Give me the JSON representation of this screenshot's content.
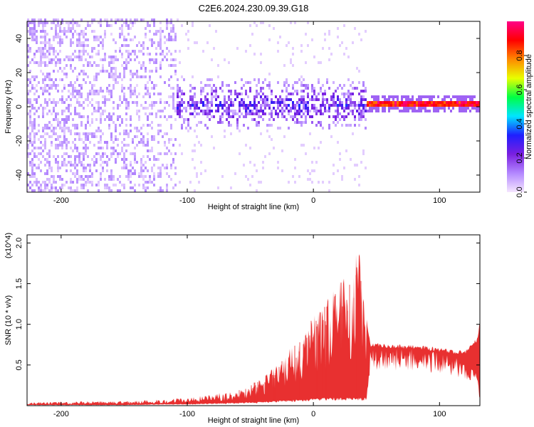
{
  "title": "C2E6.2024.230.09.39.G18",
  "colors": {
    "snr_line": "#e83030",
    "background": "#ffffff"
  },
  "chart_data": [
    {
      "type": "heatmap",
      "xlabel": "Height of straight line (km)",
      "ylabel": "Frequency (Hz)",
      "xlim": [
        -227,
        132
      ],
      "ylim": [
        -50,
        50
      ],
      "x_ticks": [
        -200,
        -100,
        0,
        100
      ],
      "y_ticks": [
        -40,
        -20,
        0,
        20,
        40
      ],
      "colorbar": {
        "label": "Normalized spectral amplitude",
        "range": [
          0,
          1
        ],
        "ticks": [
          0.0,
          0.2,
          0.4,
          0.6,
          0.8
        ],
        "colormap": [
          "#f5e6ff",
          "#b388ff",
          "#7a1fe0",
          "#1f1fff",
          "#00e5ff",
          "#00ff44",
          "#e8ff00",
          "#ff8800",
          "#ff0000",
          "#ff0088"
        ]
      },
      "regions": [
        {
          "x_range": [
            -227,
            -110
          ],
          "freq_range": [
            -50,
            50
          ],
          "amplitude": [
            0.02,
            0.12
          ],
          "density": "dense noise"
        },
        {
          "x_range": [
            -110,
            42
          ],
          "freq_range": [
            -15,
            15
          ],
          "amplitude": [
            0.05,
            0.35
          ],
          "density": "broad band"
        },
        {
          "x_range": [
            42,
            132
          ],
          "freq_center": 0.5,
          "freq_halfwidth": 2,
          "amplitude": [
            0.8,
            1.0
          ],
          "density": "narrow line"
        }
      ]
    },
    {
      "type": "line",
      "xlabel": "Height of straight line (km)",
      "ylabel": "SNR (10 * v/v)",
      "multiplier": "(x10^4)",
      "xlim": [
        -227,
        132
      ],
      "ylim": [
        0,
        2.1
      ],
      "x_ticks": [
        -200,
        -100,
        0,
        100
      ],
      "y_ticks": [
        0.5,
        1.0,
        1.5,
        2.0
      ],
      "series": [
        {
          "x": [
            -227,
            -200,
            -150,
            -120,
            -100,
            -80,
            -60,
            -40,
            -30,
            -20,
            -10,
            0,
            10,
            20,
            30,
            35,
            42,
            45,
            60,
            80,
            100,
            120,
            130,
            132
          ],
          "upper": [
            0.04,
            0.05,
            0.06,
            0.08,
            0.1,
            0.14,
            0.2,
            0.35,
            0.5,
            0.68,
            0.88,
            1.1,
            1.3,
            1.55,
            1.62,
            2.09,
            1.1,
            0.78,
            0.76,
            0.75,
            0.72,
            0.68,
            0.85,
            1.05
          ],
          "lower": [
            0.01,
            0.01,
            0.01,
            0.02,
            0.02,
            0.03,
            0.04,
            0.05,
            0.06,
            0.07,
            0.08,
            0.09,
            0.1,
            0.1,
            0.1,
            0.1,
            0.1,
            0.68,
            0.7,
            0.7,
            0.65,
            0.55,
            0.4,
            0.1
          ]
        }
      ]
    }
  ]
}
